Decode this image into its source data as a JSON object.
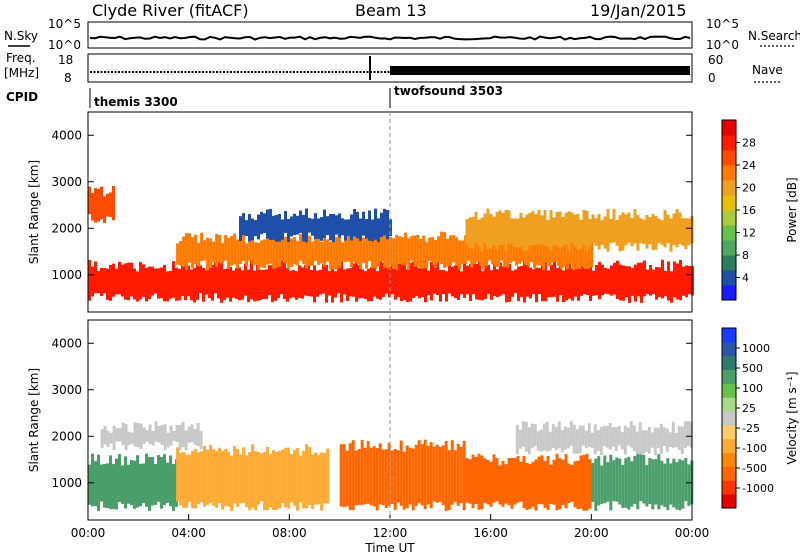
{
  "header": {
    "station": "Clyde River (fitACF)",
    "beam": "Beam 13",
    "date": "19/Jan/2015"
  },
  "noise_panel": {
    "left_label": "N.Sky",
    "right_label": "N.Search",
    "ytick_top": "10^5",
    "ytick_bottom": "10^0",
    "right_tick_top": "10^5",
    "right_tick_bottom": "10^0"
  },
  "freq_panel": {
    "left_label_1": "Freq.",
    "left_label_2": "[MHz]",
    "right_label": "Nave",
    "left_ticks": [
      "18",
      "8"
    ],
    "right_ticks": [
      "60",
      "0"
    ]
  },
  "cpid_panel": {
    "label": "CPID",
    "modes": [
      {
        "name": "themis 3300",
        "start_hour": 0
      },
      {
        "name": "twofsound 3503",
        "start_hour": 12
      }
    ]
  },
  "chart_data": [
    {
      "type": "heatmap",
      "name": "power",
      "ylabel": "Slant Range [km]",
      "xlim_hours": [
        0,
        24
      ],
      "ylim": [
        200,
        4500
      ],
      "yticks": [
        1000,
        2000,
        3000,
        4000
      ],
      "colorbar": {
        "label": "Power [dB]",
        "ticks": [
          "4",
          "8",
          "12",
          "16",
          "20",
          "24",
          "28"
        ],
        "colors": [
          "#1a1aff",
          "#1f4fa8",
          "#2a7f5a",
          "#4fa85f",
          "#66c24a",
          "#a8cc3a",
          "#e6c200",
          "#f0a020",
          "#ff7a00",
          "#ff4a00",
          "#ff1a00",
          "#e60000"
        ]
      },
      "bands": [
        {
          "range_km": [
            500,
            1200
          ],
          "hours": [
            0,
            24
          ],
          "level": "28",
          "color": "#ff1a00"
        },
        {
          "range_km": [
            1200,
            1800
          ],
          "hours": [
            3.5,
            20
          ],
          "level": "20",
          "color": "#ff7a00"
        },
        {
          "range_km": [
            1600,
            2300
          ],
          "hours": [
            15,
            24
          ],
          "level": "16",
          "color": "#f0a020"
        },
        {
          "range_km": [
            2200,
            2800
          ],
          "hours": [
            0,
            1
          ],
          "level": "24",
          "color": "#ff4a00"
        },
        {
          "range_km": [
            1800,
            2300
          ],
          "hours": [
            6,
            12
          ],
          "level": "4",
          "color": "#1f4fa8"
        }
      ]
    },
    {
      "type": "heatmap",
      "name": "velocity",
      "xlabel": "Time UT",
      "ylabel": "Slant Range [km]",
      "xlim_hours": [
        0,
        24
      ],
      "ylim": [
        200,
        4500
      ],
      "yticks": [
        1000,
        2000,
        3000,
        4000
      ],
      "xticks": [
        "00:00",
        "04:00",
        "08:00",
        "12:00",
        "16:00",
        "20:00",
        "00:00"
      ],
      "colorbar": {
        "label": "Velocity [m s⁻¹]",
        "ticks": [
          "-1000",
          "-500",
          "-100",
          "-25",
          "25",
          "100",
          "500",
          "1000"
        ],
        "colors": [
          "#e60000",
          "#ff3300",
          "#ff6600",
          "#ff8800",
          "#ffaa33",
          "#ffcc66",
          "#c8c8c8",
          "#a8d88a",
          "#66c24a",
          "#4a9e6a",
          "#2f7a6a",
          "#2a55a8",
          "#1a3aff"
        ]
      },
      "bands": [
        {
          "range_km": [
            500,
            1500
          ],
          "hours": [
            0,
            3.5
          ],
          "level": "100",
          "color": "#4a9e6a"
        },
        {
          "range_km": [
            500,
            1700
          ],
          "hours": [
            3.5,
            9.5
          ],
          "level": "-100",
          "color": "#ffaa33"
        },
        {
          "range_km": [
            500,
            1800
          ],
          "hours": [
            10,
            15
          ],
          "level": "-500",
          "color": "#ff6600"
        },
        {
          "range_km": [
            500,
            1500
          ],
          "hours": [
            15,
            20
          ],
          "level": "-500",
          "color": "#ff6600"
        },
        {
          "range_km": [
            500,
            1500
          ],
          "hours": [
            20,
            24
          ],
          "level": "100",
          "color": "#4a9e6a"
        },
        {
          "range_km": [
            1800,
            2200
          ],
          "hours": [
            0.5,
            4.5
          ],
          "level": "25",
          "color": "#c8c8c8"
        },
        {
          "range_km": [
            1700,
            2200
          ],
          "hours": [
            17,
            24
          ],
          "level": "25",
          "color": "#c8c8c8"
        }
      ]
    }
  ]
}
